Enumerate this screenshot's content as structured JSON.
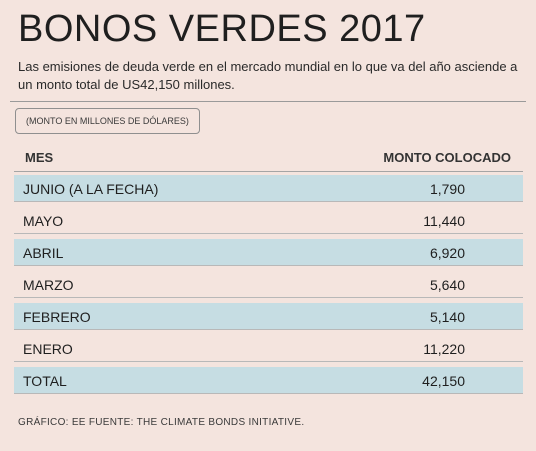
{
  "header": {
    "title": "BONOS VERDES 2017",
    "subtitle": "Las emisiones de deuda verde en el mercado mundial en lo que va del año asciende a un monto total de US42,150 millones.",
    "unit_note": "(MONTO EN MILLONES DE DÓLARES)"
  },
  "chart_data": {
    "type": "table",
    "columns": [
      "MES",
      "MONTO COLOCADO"
    ],
    "rows": [
      {
        "label": "JUNIO (A LA FECHA)",
        "value": "1,790"
      },
      {
        "label": "MAYO",
        "value": "11,440"
      },
      {
        "label": "ABRIL",
        "value": "6,920"
      },
      {
        "label": "MARZO",
        "value": "5,640"
      },
      {
        "label": "FEBRERO",
        "value": "5,140"
      },
      {
        "label": "ENERO",
        "value": "11,220"
      },
      {
        "label": "TOTAL",
        "value": "42,150"
      }
    ]
  },
  "footer": {
    "source": "GRÁFICO: EE  FUENTE: THE CLIMATE BONDS INITIATIVE."
  },
  "colors": {
    "background": "#f4e4de",
    "row_shade": "#c6dde3"
  }
}
